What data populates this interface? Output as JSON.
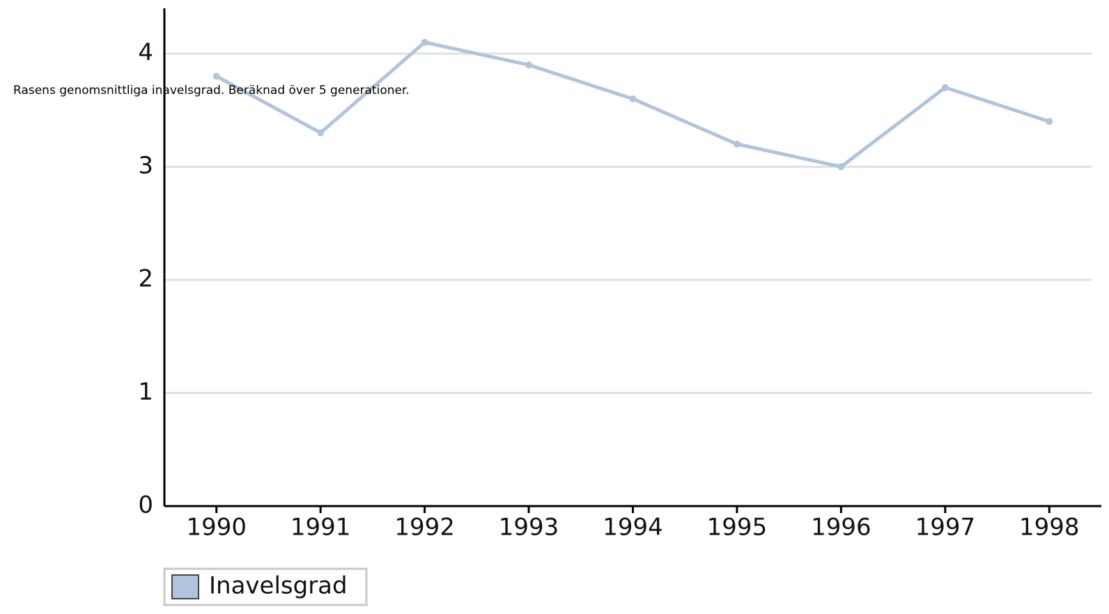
{
  "chart_data": {
    "type": "line",
    "title": "Rasens genomsnittliga inavelsgrad. Beräknad över 5 generationer.",
    "categories": [
      "1990",
      "1991",
      "1992",
      "1993",
      "1994",
      "1995",
      "1996",
      "1997",
      "1998"
    ],
    "series": [
      {
        "name": "Inavelsgrad",
        "color": "#b0c4de",
        "values": [
          3.8,
          3.3,
          4.1,
          3.9,
          3.6,
          3.2,
          3.0,
          3.7,
          3.4
        ]
      }
    ],
    "ylim": [
      0,
      4.4
    ],
    "yticks": [
      0,
      1,
      2,
      3,
      4
    ],
    "grid": true,
    "legend": "bottom-left"
  }
}
